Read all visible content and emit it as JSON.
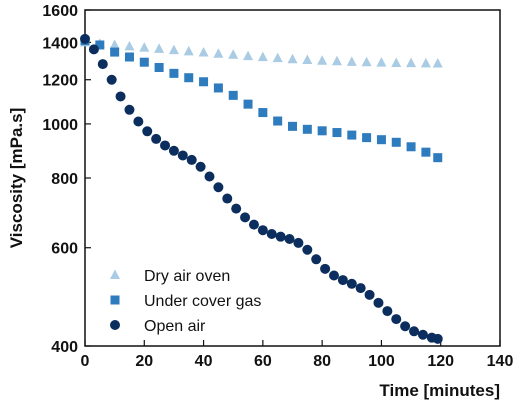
{
  "chart_data": {
    "type": "scatter",
    "xlabel": "Time [minutes]",
    "ylabel": "Viscosity [mPa.s]",
    "xlim": [
      0,
      140
    ],
    "ylim": [
      400,
      1600
    ],
    "yscale": "log",
    "grid": false,
    "legend_position": "bottom-left",
    "x_ticks": [
      "0",
      "20",
      "40",
      "60",
      "80",
      "100",
      "120",
      "140"
    ],
    "y_ticks": [
      "400",
      "600",
      "800",
      "1000",
      "1200",
      "1400",
      "1600"
    ],
    "series": [
      {
        "name": "Dry air oven",
        "marker": "triangle",
        "color": "#a9cbe3",
        "points": [
          [
            0,
            1400
          ],
          [
            5,
            1392
          ],
          [
            10,
            1385
          ],
          [
            15,
            1377
          ],
          [
            20,
            1370
          ],
          [
            25,
            1363
          ],
          [
            30,
            1356
          ],
          [
            35,
            1349
          ],
          [
            40,
            1343
          ],
          [
            45,
            1336
          ],
          [
            50,
            1330
          ],
          [
            55,
            1323
          ],
          [
            60,
            1317
          ],
          [
            65,
            1312
          ],
          [
            70,
            1306
          ],
          [
            75,
            1302
          ],
          [
            80,
            1298
          ],
          [
            85,
            1295
          ],
          [
            90,
            1292
          ],
          [
            95,
            1290
          ],
          [
            100,
            1288
          ],
          [
            105,
            1286
          ],
          [
            110,
            1285
          ],
          [
            115,
            1284
          ],
          [
            119,
            1283
          ]
        ]
      },
      {
        "name": "Under cover gas",
        "marker": "square",
        "color": "#2e7bbd",
        "points": [
          [
            0,
            1410
          ],
          [
            5,
            1385
          ],
          [
            10,
            1345
          ],
          [
            15,
            1318
          ],
          [
            20,
            1290
          ],
          [
            25,
            1262
          ],
          [
            30,
            1232
          ],
          [
            35,
            1210
          ],
          [
            40,
            1190
          ],
          [
            45,
            1160
          ],
          [
            50,
            1125
          ],
          [
            55,
            1085
          ],
          [
            60,
            1048
          ],
          [
            65,
            1012
          ],
          [
            70,
            990
          ],
          [
            75,
            978
          ],
          [
            80,
            972
          ],
          [
            85,
            965
          ],
          [
            90,
            955
          ],
          [
            95,
            945
          ],
          [
            100,
            937
          ],
          [
            105,
            927
          ],
          [
            110,
            910
          ],
          [
            115,
            890
          ],
          [
            119,
            870
          ]
        ]
      },
      {
        "name": "Open air",
        "marker": "circle",
        "color": "#0c2e5e",
        "points": [
          [
            0,
            1420
          ],
          [
            3,
            1360
          ],
          [
            6,
            1280
          ],
          [
            9,
            1200
          ],
          [
            12,
            1120
          ],
          [
            15,
            1060
          ],
          [
            18,
            1010
          ],
          [
            21,
            970
          ],
          [
            24,
            940
          ],
          [
            27,
            915
          ],
          [
            30,
            895
          ],
          [
            33,
            878
          ],
          [
            36,
            862
          ],
          [
            39,
            838
          ],
          [
            42,
            805
          ],
          [
            45,
            770
          ],
          [
            48,
            735
          ],
          [
            51,
            705
          ],
          [
            54,
            680
          ],
          [
            57,
            660
          ],
          [
            60,
            645
          ],
          [
            63,
            635
          ],
          [
            66,
            628
          ],
          [
            69,
            622
          ],
          [
            72,
            612
          ],
          [
            75,
            595
          ],
          [
            78,
            572
          ],
          [
            81,
            550
          ],
          [
            84,
            535
          ],
          [
            87,
            525
          ],
          [
            90,
            517
          ],
          [
            93,
            508
          ],
          [
            96,
            494
          ],
          [
            99,
            478
          ],
          [
            102,
            462
          ],
          [
            105,
            447
          ],
          [
            108,
            434
          ],
          [
            111,
            425
          ],
          [
            114,
            419
          ],
          [
            117,
            414
          ],
          [
            119,
            412
          ]
        ]
      }
    ]
  }
}
